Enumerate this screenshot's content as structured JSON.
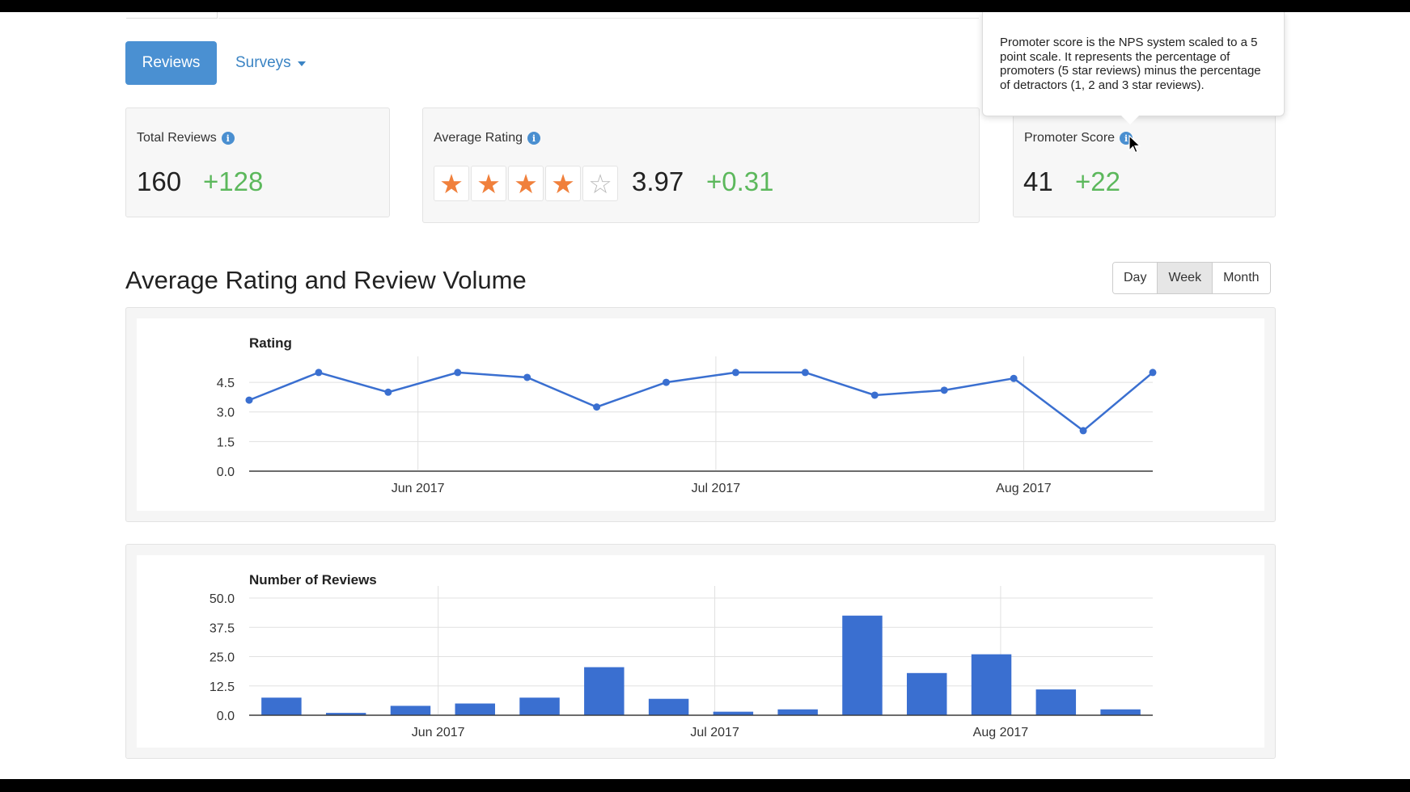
{
  "nav": {
    "reviews_label": "Reviews",
    "surveys_label": "Surveys"
  },
  "cards": {
    "total_reviews": {
      "label": "Total Reviews",
      "value": "160",
      "delta": "+128"
    },
    "average_rating": {
      "label": "Average Rating",
      "value": "3.97",
      "delta": "+0.31",
      "stars": 4,
      "stars_max": 5
    },
    "promoter_score": {
      "label": "Promoter Score",
      "value": "41",
      "delta": "+22"
    }
  },
  "tooltip": {
    "text": "Promoter score is the NPS system scaled to a 5 point scale. It represents the percentage of promoters (5 star reviews) minus the percentage of detractors (1, 2 and 3 star reviews)."
  },
  "section": {
    "title": "Average Rating and Review Volume"
  },
  "range": {
    "day": "Day",
    "week": "Week",
    "month": "Month",
    "active": "Week"
  },
  "colors": {
    "primary": "#4a90d2",
    "positive": "#5cb85c",
    "star": "#f0803c",
    "series": "#3a6fd0"
  },
  "chart_data": [
    {
      "type": "line",
      "title": "Rating",
      "x": [
        "2017-05-15",
        "2017-05-22",
        "2017-05-29",
        "2017-06-05",
        "2017-06-12",
        "2017-06-19",
        "2017-06-26",
        "2017-07-03",
        "2017-07-10",
        "2017-07-17",
        "2017-07-24",
        "2017-07-31",
        "2017-08-07",
        "2017-08-14"
      ],
      "series": [
        {
          "values": [
            3.6,
            5.0,
            4.0,
            5.0,
            4.75,
            3.25,
            4.5,
            5.0,
            5.0,
            3.85,
            4.1,
            4.7,
            2.05,
            5.0
          ]
        }
      ],
      "yticks": [
        "0.0",
        "1.5",
        "3.0",
        "4.5"
      ],
      "ylim": [
        0,
        5.2
      ],
      "xticks": [
        "Jun 2017",
        "Jul 2017",
        "Aug 2017"
      ],
      "grid": true
    },
    {
      "type": "bar",
      "title": "Number of Reviews",
      "x": [
        "2017-05-15",
        "2017-05-22",
        "2017-05-29",
        "2017-06-05",
        "2017-06-12",
        "2017-06-19",
        "2017-06-26",
        "2017-07-03",
        "2017-07-10",
        "2017-07-17",
        "2017-07-24",
        "2017-07-31",
        "2017-08-07",
        "2017-08-14"
      ],
      "series": [
        {
          "values": [
            7.5,
            1,
            4,
            5,
            7.5,
            20.5,
            7,
            1.5,
            2.5,
            42.5,
            18,
            26,
            11,
            2.5
          ]
        }
      ],
      "yticks": [
        "0.0",
        "12.5",
        "25.0",
        "37.5",
        "50.0"
      ],
      "ylim": [
        0,
        50
      ],
      "xticks": [
        "Jun 2017",
        "Jul 2017",
        "Aug 2017"
      ],
      "grid": true
    }
  ]
}
